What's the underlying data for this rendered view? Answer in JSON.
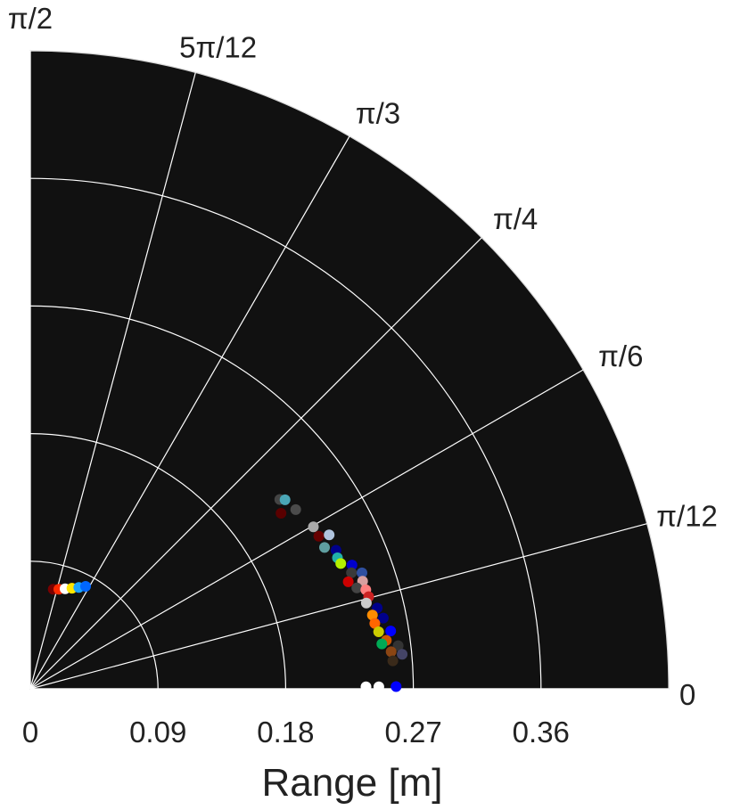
{
  "chart_data": {
    "type": "scatter",
    "coordinate_system": "polar",
    "theta_range": [
      0,
      1.5708
    ],
    "r_range": [
      0,
      0.45
    ],
    "xlabel": "Range [m]",
    "r_ticks": [
      {
        "value": 0,
        "label": "0"
      },
      {
        "value": 0.09,
        "label": "0.09"
      },
      {
        "value": 0.18,
        "label": "0.18"
      },
      {
        "value": 0.27,
        "label": "0.27"
      },
      {
        "value": 0.36,
        "label": "0.36"
      }
    ],
    "theta_ticks": [
      {
        "value": 0,
        "label": "0"
      },
      {
        "value": 0.2618,
        "label": "π/12"
      },
      {
        "value": 0.5236,
        "label": "π/6"
      },
      {
        "value": 0.7854,
        "label": "π/4"
      },
      {
        "value": 1.0472,
        "label": "π/3"
      },
      {
        "value": 1.309,
        "label": "5π/12"
      },
      {
        "value": 1.5708,
        "label": "π/2"
      }
    ],
    "grid": true,
    "background_color": "#111111",
    "grid_color": "#ffffff",
    "points": [
      {
        "theta": 1.3453,
        "r": 0.0721,
        "color": "#7a0000"
      },
      {
        "theta": 1.2924,
        "r": 0.0731,
        "color": "#ff2a00"
      },
      {
        "theta": 1.2366,
        "r": 0.0747,
        "color": "#ffffff"
      },
      {
        "theta": 1.179,
        "r": 0.0768,
        "color": "#ffe600"
      },
      {
        "theta": 1.1242,
        "r": 0.0792,
        "color": "#1aa3ff"
      },
      {
        "theta": 1.076,
        "r": 0.0821,
        "color": "#0066ff"
      },
      {
        "theta": 0.6495,
        "r": 0.2208,
        "color": "#444444"
      },
      {
        "theta": 0.6386,
        "r": 0.2236,
        "color": "#4aa6b6"
      },
      {
        "theta": 0.6111,
        "r": 0.2158,
        "color": "#5a0000"
      },
      {
        "theta": 0.5941,
        "r": 0.2258,
        "color": "#4b4b4b"
      },
      {
        "theta": 0.5197,
        "r": 0.2299,
        "color": "#aaaaaa"
      },
      {
        "theta": 0.4867,
        "r": 0.2301,
        "color": "#660000"
      },
      {
        "theta": 0.4757,
        "r": 0.237,
        "color": "#b0c4de"
      },
      {
        "theta": 0.4479,
        "r": 0.2301,
        "color": "#5f9ea0"
      },
      {
        "theta": 0.4257,
        "r": 0.2366,
        "color": "#00008b"
      },
      {
        "theta": 0.4034,
        "r": 0.2354,
        "color": "#20b2aa"
      },
      {
        "theta": 0.3839,
        "r": 0.236,
        "color": "#b4f000"
      },
      {
        "theta": 0.3676,
        "r": 0.243,
        "color": "#0000cd"
      },
      {
        "theta": 0.347,
        "r": 0.2407,
        "color": "#3a3a3a"
      },
      {
        "theta": 0.3363,
        "r": 0.2477,
        "color": "#2f4f9f"
      },
      {
        "theta": 0.3249,
        "r": 0.2365,
        "color": "#cc0000"
      },
      {
        "theta": 0.3134,
        "r": 0.2462,
        "color": "#d8a0a0"
      },
      {
        "theta": 0.3002,
        "r": 0.2409,
        "color": "#444444"
      },
      {
        "theta": 0.287,
        "r": 0.2466,
        "color": "#ff8080"
      },
      {
        "theta": 0.2659,
        "r": 0.2472,
        "color": "#cc2222"
      },
      {
        "theta": 0.2499,
        "r": 0.2445,
        "color": "#cccccc"
      },
      {
        "theta": 0.2288,
        "r": 0.2511,
        "color": "#00008b"
      },
      {
        "theta": 0.2126,
        "r": 0.2467,
        "color": "#ff8c00"
      },
      {
        "theta": 0.1979,
        "r": 0.2538,
        "color": "#00008b"
      },
      {
        "theta": 0.1876,
        "r": 0.2472,
        "color": "#ff6600"
      },
      {
        "theta": 0.1625,
        "r": 0.2488,
        "color": "#cccc00"
      },
      {
        "theta": 0.1593,
        "r": 0.2573,
        "color": "#0000ff"
      },
      {
        "theta": 0.1355,
        "r": 0.2533,
        "color": "#cc5500"
      },
      {
        "theta": 0.1271,
        "r": 0.2498,
        "color": "#00aa55"
      },
      {
        "theta": 0.1168,
        "r": 0.2611,
        "color": "#333333"
      },
      {
        "theta": 0.1024,
        "r": 0.2557,
        "color": "#8b4513"
      },
      {
        "theta": 0.0926,
        "r": 0.2633,
        "color": "#444466"
      },
      {
        "theta": 0.077,
        "r": 0.2563,
        "color": "#3a2a1a"
      },
      {
        "theta": 0.006,
        "r": 0.2366,
        "color": "#ffffff"
      },
      {
        "theta": 0.006,
        "r": 0.2457,
        "color": "#ffffff"
      },
      {
        "theta": 0.006,
        "r": 0.2579,
        "color": "#0000ff"
      }
    ]
  }
}
